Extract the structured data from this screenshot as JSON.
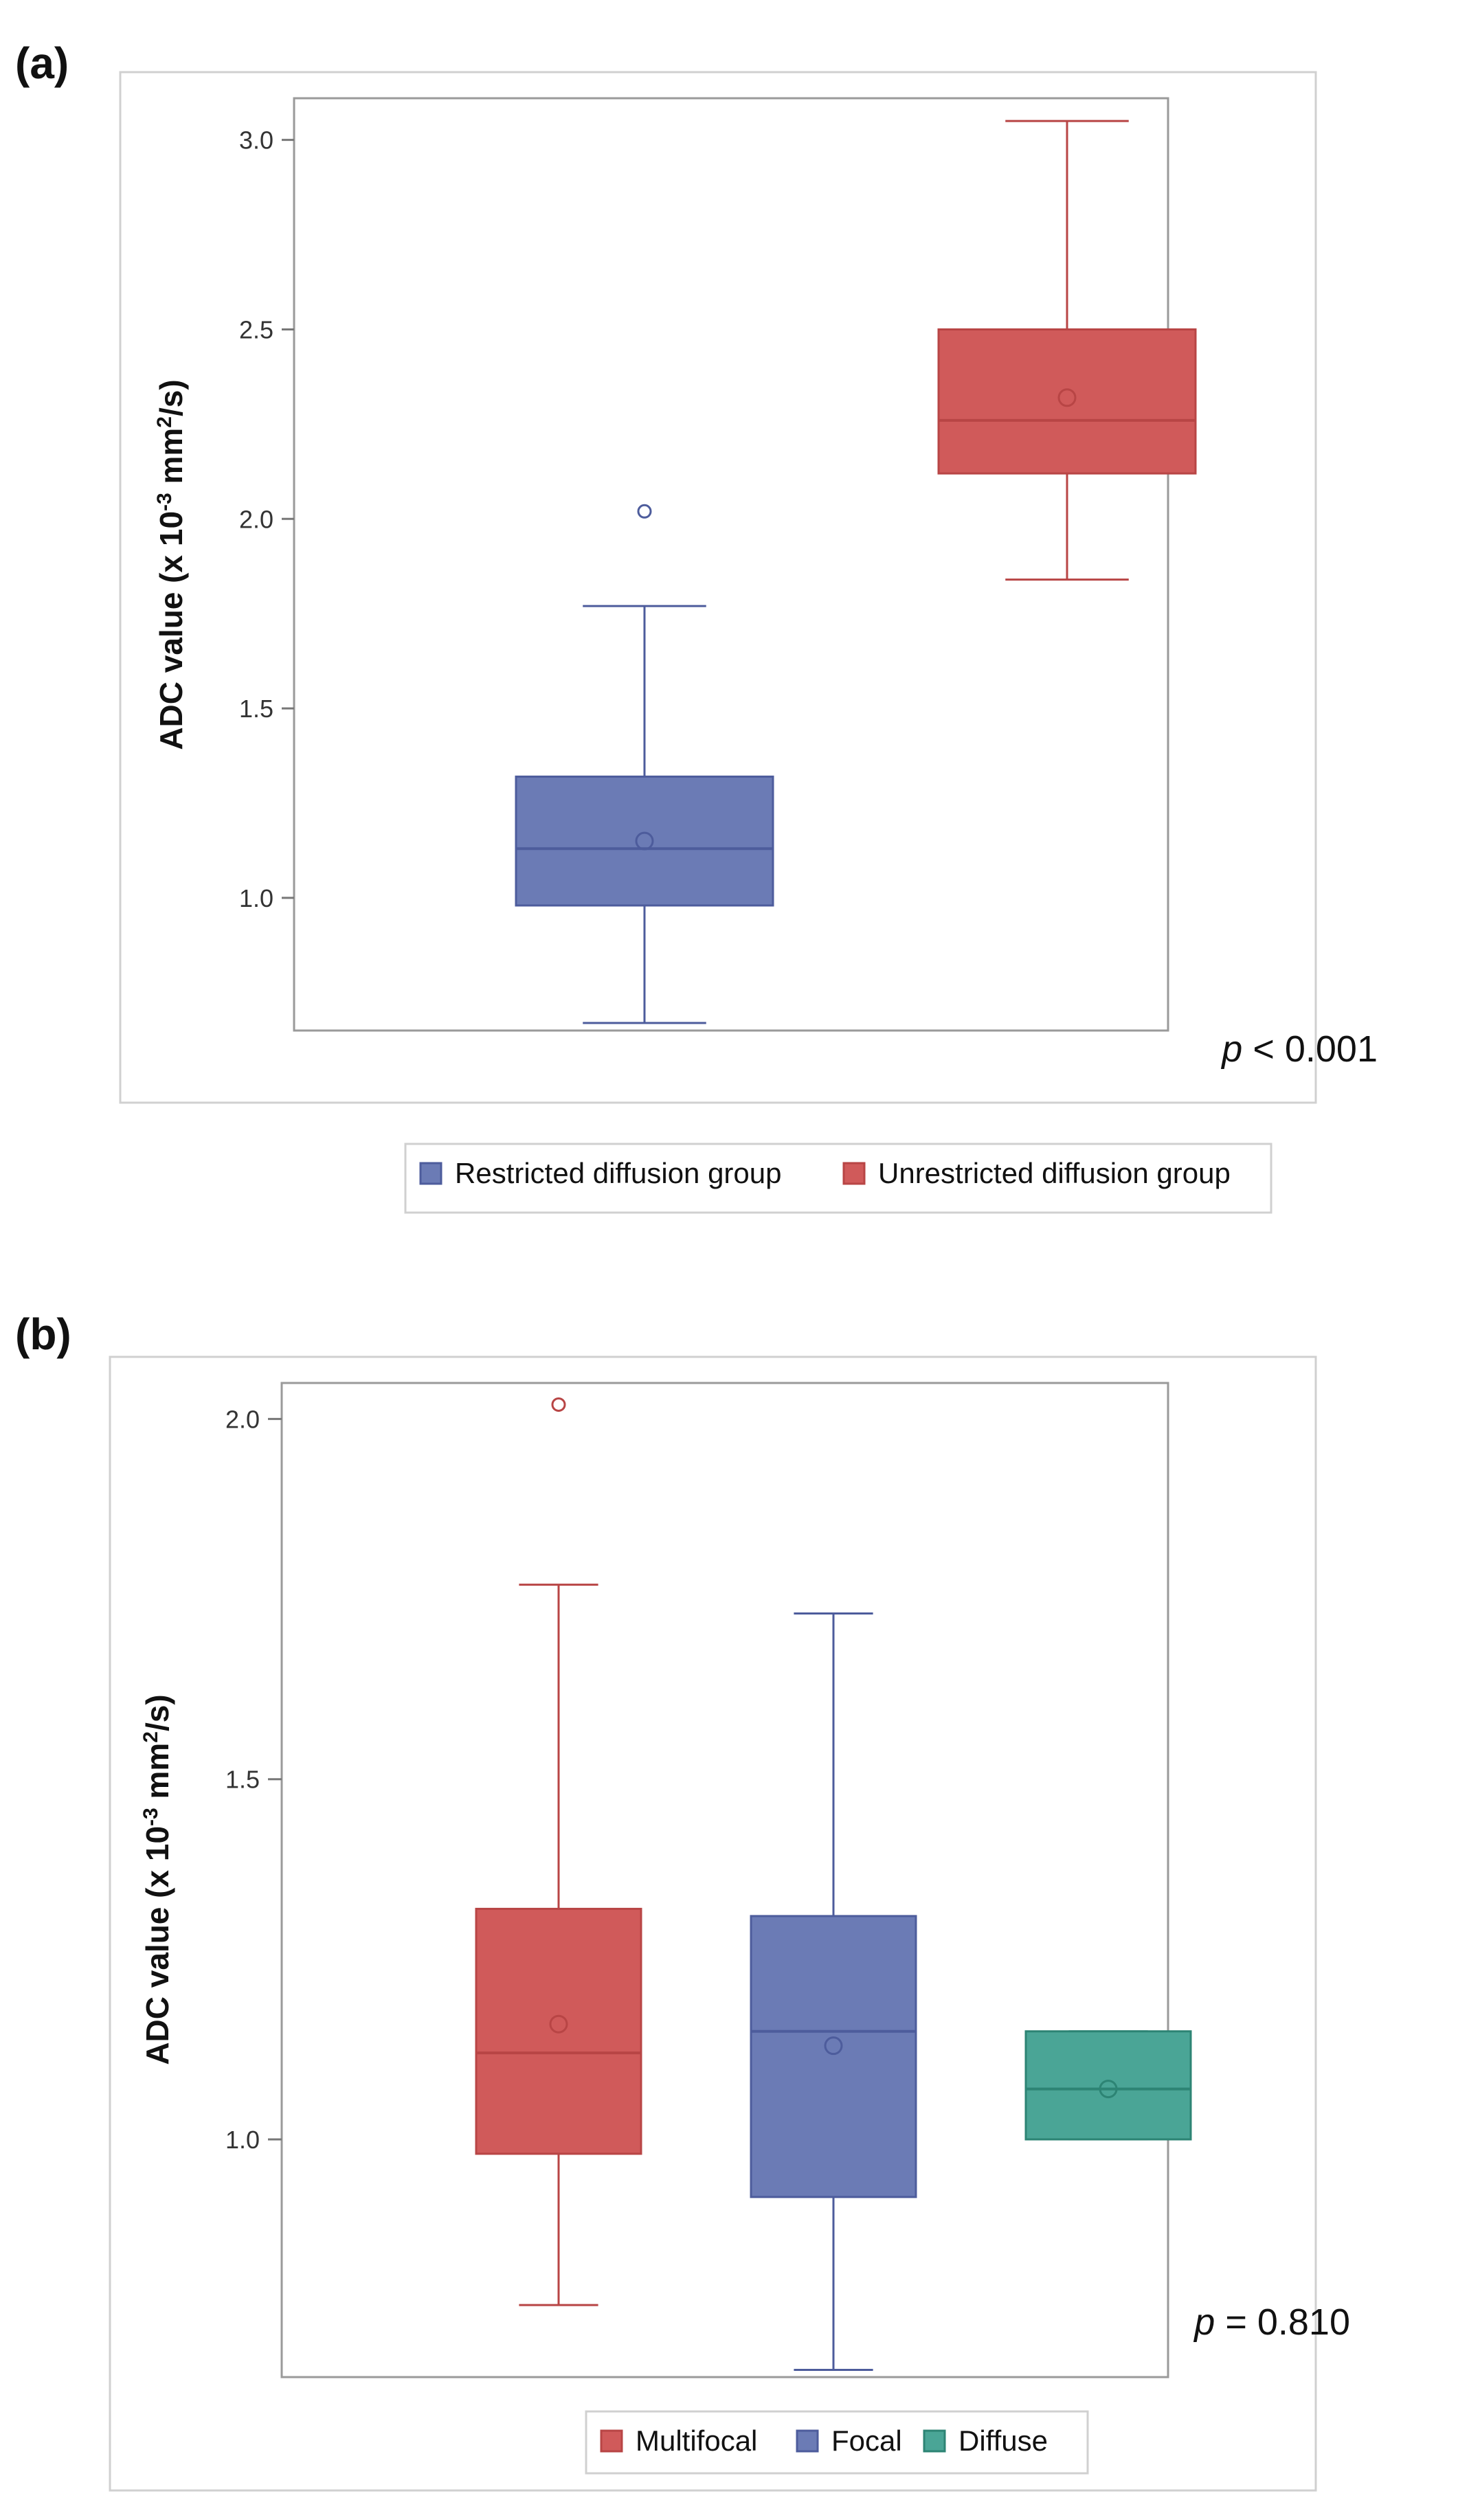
{
  "chart_data": [
    {
      "panel": "(a)",
      "type": "boxplot",
      "ylabel": "ADC value (x 10",
      "ylabel_exp": "-3",
      "ylabel_unit": " mm",
      "ylabel_unit_exp": "2",
      "ylabel_tail": "/s)",
      "ylim": [
        0.65,
        3.11
      ],
      "yticks": [
        "1.0",
        "1.5",
        "2.0",
        "2.5",
        "3.0"
      ],
      "annotation_italic": "p",
      "annotation_rest": " < 0.001",
      "legend": [
        "Restricted diffusion group",
        "Unrestricted diffusion group"
      ],
      "series": [
        {
          "name": "Restricted diffusion group",
          "color": "#6b7bb5",
          "edge": "#4d5c9c",
          "whisker_low": 0.67,
          "q1": 0.98,
          "median": 1.13,
          "q3": 1.32,
          "whisker_high": 1.77,
          "mean": 1.15,
          "outliers": [
            2.02
          ]
        },
        {
          "name": "Unrestricted diffusion group",
          "color": "#d05a5a",
          "edge": "#b84545",
          "whisker_low": 1.84,
          "q1": 2.12,
          "median": 2.26,
          "q3": 2.5,
          "whisker_high": 3.05,
          "mean": 2.32,
          "outliers": []
        }
      ]
    },
    {
      "panel": "(b)",
      "type": "boxplot",
      "ylabel": "ADC value (x 10",
      "ylabel_exp": "-3",
      "ylabel_unit": " mm",
      "ylabel_unit_exp": "2",
      "ylabel_tail": "/s)",
      "ylim": [
        0.67,
        2.05
      ],
      "yticks": [
        "1.0",
        "1.5",
        "2.0"
      ],
      "annotation_italic": "p",
      "annotation_rest": " = 0.810",
      "legend": [
        "Multifocal",
        "Focal",
        "Diffuse"
      ],
      "series": [
        {
          "name": "Multifocal",
          "color": "#d05a5a",
          "edge": "#b84545",
          "whisker_low": 0.77,
          "q1": 0.98,
          "median": 1.12,
          "q3": 1.32,
          "whisker_high": 1.77,
          "mean": 1.16,
          "outliers": [
            2.02
          ]
        },
        {
          "name": "Focal",
          "color": "#6b7bb5",
          "edge": "#4d5c9c",
          "whisker_low": 0.68,
          "q1": 0.92,
          "median": 1.15,
          "q3": 1.31,
          "whisker_high": 1.73,
          "mean": 1.13,
          "outliers": []
        },
        {
          "name": "Diffuse",
          "color": "#4aa596",
          "edge": "#2d8474",
          "whisker_low": 1.0,
          "q1": 1.0,
          "median": 1.07,
          "q3": 1.15,
          "whisker_high": 1.15,
          "mean": 1.07,
          "outliers": []
        }
      ]
    }
  ]
}
